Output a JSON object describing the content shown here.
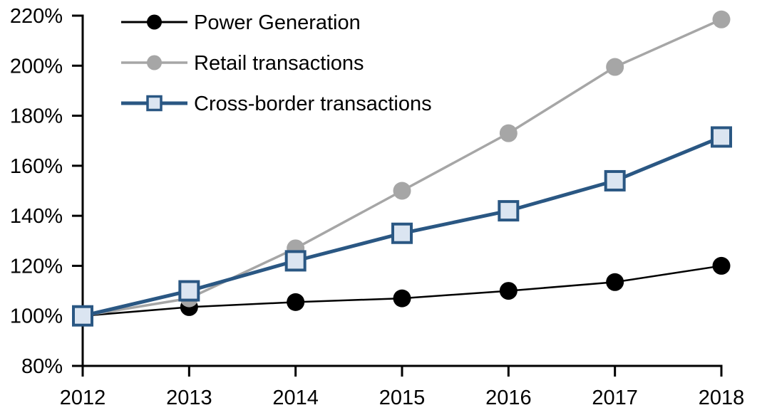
{
  "chart_data": {
    "type": "line",
    "title": "",
    "xlabel": "",
    "ylabel": "",
    "x": [
      "2012",
      "2013",
      "2014",
      "2015",
      "2016",
      "2017",
      "2018"
    ],
    "series": [
      {
        "name": "Power Generation",
        "values": [
          100,
          103.5,
          105.5,
          107,
          110,
          113.5,
          120
        ],
        "line_color": "#000000",
        "line_width": 2.5,
        "marker": "circle",
        "marker_fill": "#000000",
        "marker_stroke": "#000000"
      },
      {
        "name": "Retail transactions",
        "values": [
          100,
          107,
          127,
          150,
          173,
          199.5,
          218.5
        ],
        "line_color": "#a6a6a6",
        "line_width": 3.5,
        "marker": "circle",
        "marker_fill": "#a6a6a6",
        "marker_stroke": "#a6a6a6"
      },
      {
        "name": "Cross-border transactions",
        "values": [
          100,
          110,
          122,
          133,
          142,
          154,
          171.5
        ],
        "line_color": "#2a5783",
        "line_width": 5,
        "marker": "square",
        "marker_fill": "#dbe5f1",
        "marker_stroke": "#2a5783"
      }
    ],
    "ylim": [
      80,
      220
    ],
    "y_tick_step": 20,
    "y_tick_suffix": "%",
    "y_tick_labels": [
      "80%",
      "100%",
      "120%",
      "140%",
      "160%",
      "180%",
      "200%",
      "220%"
    ],
    "grid": false,
    "legend_position": "top-left",
    "background_color": "#ffffff",
    "axis_color": "#000000",
    "text_color": "#000000"
  }
}
